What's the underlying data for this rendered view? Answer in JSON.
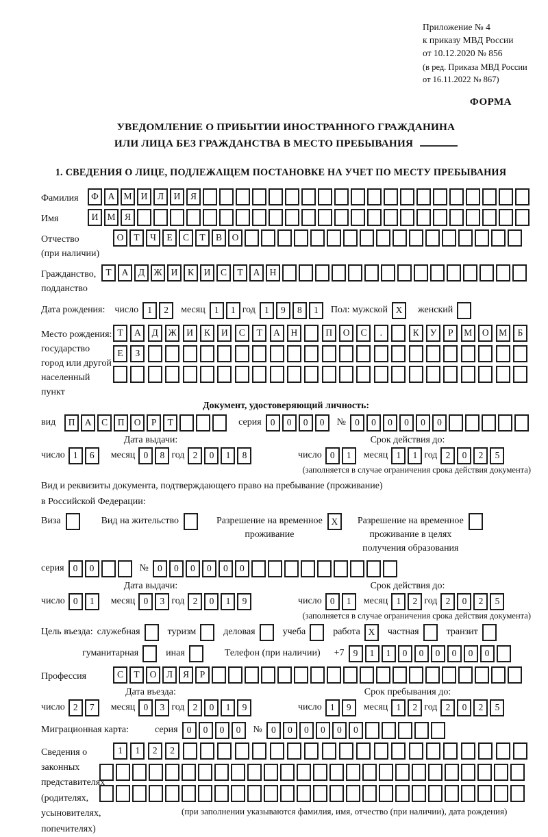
{
  "header": {
    "lines": [
      "Приложение № 4",
      "к приказу МВД России",
      "от 10.12.2020 № 856"
    ],
    "sub_lines": [
      "(в ред. Приказа МВД России",
      "от 16.11.2022 № 867)"
    ],
    "forma": "ФОРМА"
  },
  "title": {
    "line1": "УВЕДОМЛЕНИЕ О ПРИБЫТИИ ИНОСТРАННОГО ГРАЖДАНИНА",
    "line2": "ИЛИ ЛИЦА БЕЗ ГРАЖДАНСТВА В МЕСТО ПРЕБЫВАНИЯ"
  },
  "section1_heading": "1. СВЕДЕНИЯ О ЛИЦЕ, ПОДЛЕЖАЩЕМ ПОСТАНОВКЕ НА УЧЕТ ПО МЕСТУ ПРЕБЫВАНИЯ",
  "labels": {
    "day": "число",
    "month": "месяц",
    "year": "год",
    "issue_date": "Дата выдачи:",
    "valid_until": "Срок действия до:",
    "validity_note": "(заполняется в случае ограничения срока действия документа)",
    "seriya": "серия",
    "number": "№"
  },
  "surname": {
    "label": "Фамилия",
    "cells": {
      "chars": "ФАМИЛИЯ",
      "count": 27
    }
  },
  "firstname": {
    "label": "Имя",
    "cells": {
      "chars": "ИМЯ",
      "count": 27
    }
  },
  "patronymic": {
    "label1": "Отчество",
    "label2": "(при наличии)",
    "cells": {
      "chars": "ОТЧЕСТВО",
      "count": 25
    }
  },
  "citizenship": {
    "label1": "Гражданство,",
    "label2": "подданство",
    "cells": {
      "chars": "ТАДЖИКИСТАН",
      "count": 26
    }
  },
  "birth_date": {
    "label": "Дата рождения:",
    "day": "12",
    "month": "11",
    "year": "1981"
  },
  "sex": {
    "label": "Пол: мужской",
    "male_value": "X",
    "female_label": "женский",
    "female_value": " "
  },
  "birth_place": {
    "label_lines": [
      "Место рождения:",
      "государство",
      "город или другой",
      "населенный пункт"
    ],
    "row1": {
      "chars": "ТАДЖИКИСТАН ПОС. КУРМОМБ",
      "count": 24
    },
    "row2": {
      "chars": "ЕЗ",
      "count": 24
    },
    "row3": {
      "chars": "",
      "count": 24
    }
  },
  "identity_doc": {
    "heading": "Документ, удостоверяющий личность:",
    "vid_label": "вид",
    "vid": {
      "chars": "ПАСПОРТ",
      "count": 10
    },
    "seriya": {
      "chars": "0000",
      "count": 4
    },
    "number": {
      "chars": "000000",
      "count": 11
    },
    "issue": {
      "day": "16",
      "month": "08",
      "year": "2018"
    },
    "valid": {
      "day": "01",
      "month": "11",
      "year": "2025"
    }
  },
  "residence_doc": {
    "line1": "Вид и реквизиты документа, подтверждающего право на пребывание (проживание)",
    "line2": "в Российской Федерации:",
    "visa_label": "Виза",
    "visa_value": " ",
    "vnj_label": "Вид на жительство",
    "vnj_value": " ",
    "rvp_label1": "Разрешение на временное",
    "rvp_label2": "проживание",
    "rvp_value": "X",
    "rvpo_label1": "Разрешение на временное",
    "rvpo_label2": "проживание в целях",
    "rvpo_label3": "получения образования",
    "rvpo_value": " ",
    "seriya": {
      "chars": "00",
      "count": 4
    },
    "number": {
      "chars": "000000",
      "count": 15
    },
    "issue": {
      "day": "01",
      "month": "03",
      "year": "2019"
    },
    "valid": {
      "day": "01",
      "month": "12",
      "year": "2025"
    }
  },
  "purpose": {
    "label": "Цель въезда:",
    "options": [
      {
        "label": "служебная",
        "value": " "
      },
      {
        "label": "туризм",
        "value": " "
      },
      {
        "label": "деловая",
        "value": " "
      },
      {
        "label": "учеба",
        "value": " "
      },
      {
        "label": "работа",
        "value": "X"
      },
      {
        "label": "частная",
        "value": " "
      },
      {
        "label": "транзит",
        "value": " "
      },
      {
        "label": "гуманитарная",
        "value": " "
      },
      {
        "label": "иная",
        "value": " "
      }
    ]
  },
  "phone": {
    "label": "Телефон (при наличии)",
    "prefix": "+7",
    "cells": {
      "chars": "911000000",
      "count": 10
    }
  },
  "profession": {
    "label": "Профессия",
    "cells": {
      "chars": "СТОЛЯР",
      "count": 25
    }
  },
  "entry": {
    "heading": "Дата въезда:",
    "day": "27",
    "month": "03",
    "year": "2019"
  },
  "stay": {
    "heading": "Срок пребывания до:",
    "day": "19",
    "month": "12",
    "year": "2025"
  },
  "migration_card": {
    "label": "Миграционная карта:",
    "seriya": {
      "chars": "0000",
      "count": 4
    },
    "number": {
      "chars": "000000",
      "count": 11
    }
  },
  "legal_reps": {
    "label_lines": [
      "Сведения о",
      "законных",
      "представителях",
      "(родителях,",
      "усыновителях,",
      "попечителях)"
    ],
    "row1": {
      "chars": "1122",
      "count": 24
    },
    "row2": {
      "chars": "",
      "count": 26
    },
    "row3": {
      "chars": "",
      "count": 26
    },
    "footnote": "(при заполнении указываются фамилия, имя, отчество (при наличии), дата рождения)"
  }
}
